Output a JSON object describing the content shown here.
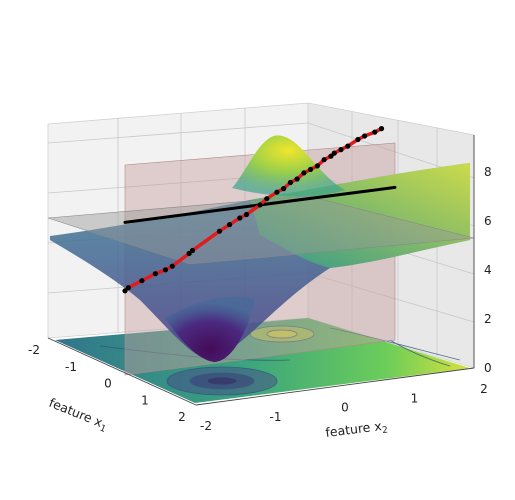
{
  "chart_data": {
    "type": "3d-surface",
    "title": "",
    "xlabel": "feature x",
    "xlabel_sub": "1",
    "ylabel": "feature x",
    "ylabel_sub": "2",
    "zlabel": "",
    "xlim": [
      -2,
      2
    ],
    "ylim": [
      -2,
      2
    ],
    "zlim": [
      0,
      9.5
    ],
    "x_ticks": [
      "-2",
      "-1",
      "0",
      "1",
      "2"
    ],
    "y_ticks": [
      "-2",
      "-1",
      "0",
      "1",
      "2"
    ],
    "z_ticks": [
      "0",
      "2",
      "4",
      "6",
      "8"
    ],
    "grid": true,
    "colormap": "viridis",
    "surface_peaks": [
      {
        "x": -1.0,
        "y": 0.2,
        "z": 9.4,
        "kind": "peak"
      },
      {
        "x": 1.0,
        "y": -0.8,
        "z": 0.5,
        "kind": "trough"
      }
    ],
    "horizontal_plane_z": 5.8,
    "vertical_slice_plane": "x2-direction slice through origin",
    "series": [
      {
        "name": "",
        "kind": "line",
        "color": "#000000",
        "x": [
          0.0,
          0.0
        ],
        "y": [
          -2.0,
          2.0
        ],
        "z": [
          5.8,
          5.8
        ]
      },
      {
        "name": "",
        "kind": "line+markers",
        "color": "#e41a1c",
        "marker_color": "#000000",
        "x": [
          0,
          0,
          0,
          0,
          0,
          0,
          0,
          0,
          0,
          0,
          0,
          0,
          0,
          0,
          0,
          0,
          0,
          0,
          0,
          0,
          0,
          0,
          0,
          0,
          0,
          0,
          0,
          0,
          0,
          0
        ],
        "y": [
          -2.0,
          -1.95,
          -1.75,
          -1.55,
          -1.4,
          -1.3,
          -1.05,
          -1.0,
          -0.6,
          -0.45,
          -0.3,
          -0.2,
          0.0,
          0.1,
          0.25,
          0.35,
          0.45,
          0.55,
          0.65,
          0.75,
          0.85,
          0.95,
          1.05,
          1.1,
          1.2,
          1.3,
          1.45,
          1.55,
          1.7,
          1.8
        ],
        "z": [
          3.2,
          3.3,
          3.5,
          3.7,
          3.8,
          3.9,
          4.3,
          4.4,
          5.0,
          5.2,
          5.4,
          5.5,
          5.8,
          6.0,
          6.2,
          6.3,
          6.5,
          6.6,
          6.8,
          6.9,
          7.0,
          7.2,
          7.3,
          7.4,
          7.5,
          7.6,
          7.8,
          7.9,
          8.0,
          8.1
        ]
      }
    ]
  }
}
